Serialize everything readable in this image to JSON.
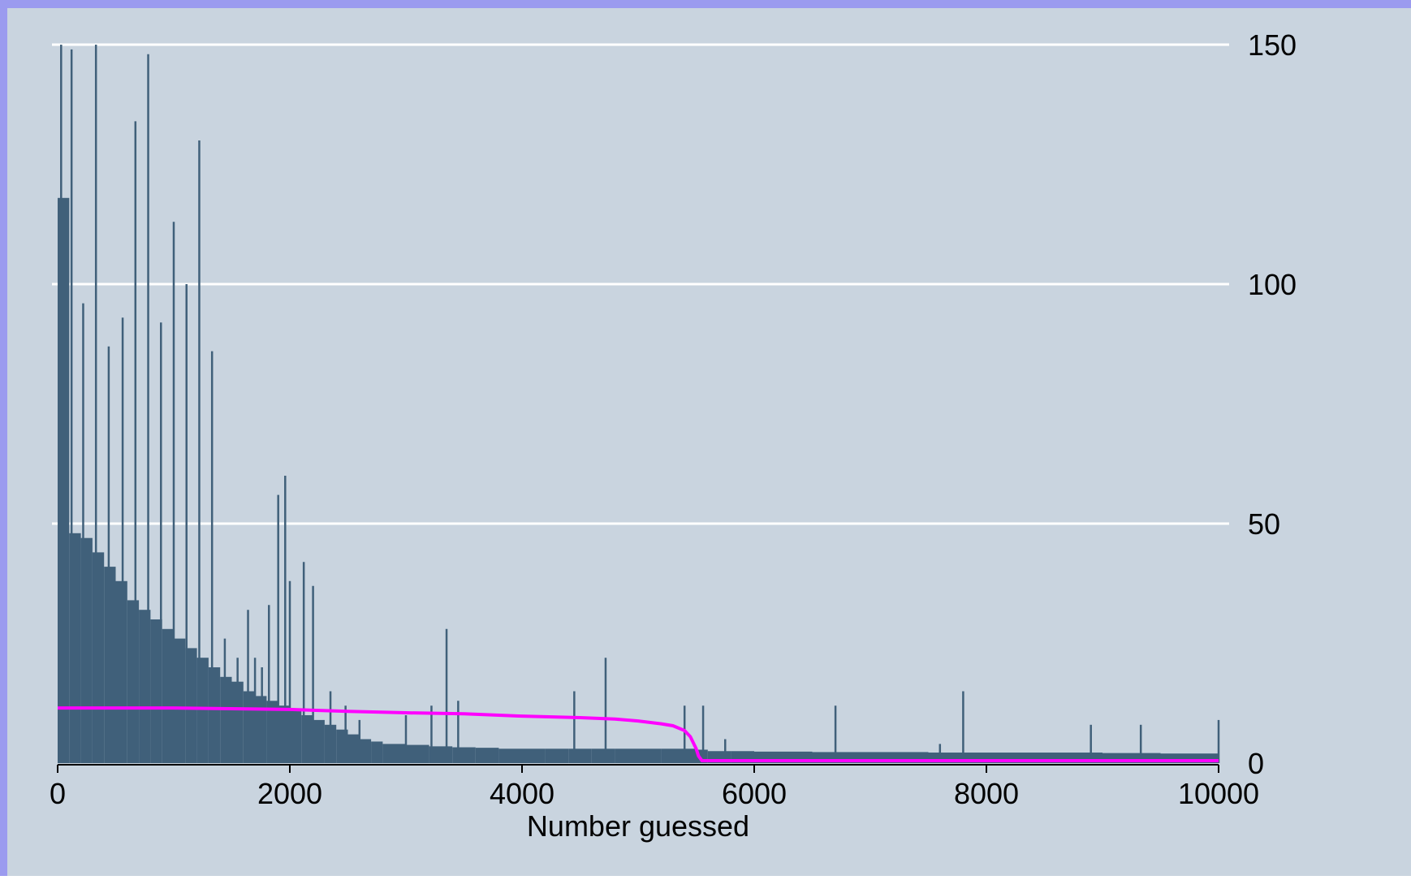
{
  "colors": {
    "slide_background": "#9b9bef",
    "plot_background": "#c9d4df",
    "bars": "#40607a",
    "grid": "#ffffff",
    "line": "#ff00ff",
    "text": "#000000"
  },
  "chart_data": {
    "type": "bar",
    "title": "",
    "xlabel": "Number guessed",
    "ylabel": "",
    "xlim": [
      0,
      10000
    ],
    "ylim": [
      0,
      150
    ],
    "x_ticks": [
      {
        "value": 0,
        "label": "0"
      },
      {
        "value": 2000,
        "label": "2000"
      },
      {
        "value": 4000,
        "label": "4000"
      },
      {
        "value": 6000,
        "label": "6000"
      },
      {
        "value": 8000,
        "label": "8000"
      },
      {
        "value": 10000,
        "label": "10000"
      }
    ],
    "y_ticks": [
      {
        "value": 0,
        "label": "0"
      },
      {
        "value": 50,
        "label": "50"
      },
      {
        "value": 100,
        "label": "100"
      },
      {
        "value": 150,
        "label": "150"
      }
    ],
    "y_axis_side": "right",
    "grid": true,
    "legend": "none",
    "series": [
      {
        "type": "spikes",
        "color": "#40607a",
        "x": [
          30,
          120,
          220,
          330,
          440,
          560,
          670,
          780,
          890,
          1000,
          1110,
          1220,
          1330,
          1440,
          1550,
          1640,
          1700,
          1760,
          1820,
          1900,
          1960,
          2000,
          2120,
          2200,
          2350,
          2480,
          2600,
          3000,
          3220,
          3350,
          3450,
          4450,
          4720,
          5400,
          5560,
          5750,
          6700,
          7600,
          7800,
          8900,
          9330,
          10000
        ],
        "values": [
          150,
          149,
          96,
          150,
          87,
          93,
          134,
          148,
          92,
          113,
          100,
          130,
          86,
          26,
          22,
          32,
          22,
          20,
          33,
          56,
          60,
          38,
          42,
          37,
          15,
          12,
          9,
          10,
          12,
          28,
          13,
          15,
          22,
          12,
          12,
          5,
          12,
          4,
          15,
          8,
          8,
          9
        ]
      },
      {
        "type": "histogram",
        "color": "#40607a",
        "x": [
          0,
          100,
          200,
          300,
          400,
          500,
          600,
          700,
          800,
          900,
          1000,
          1100,
          1200,
          1300,
          1400,
          1500,
          1600,
          1700,
          1800,
          1900,
          2000,
          2100,
          2200,
          2300,
          2400,
          2500,
          2600,
          2700,
          2800,
          3000,
          3200,
          3400,
          3600,
          3800,
          4000,
          4200,
          4400,
          4600,
          4800,
          5000,
          5200,
          5400,
          5500,
          5600,
          5800,
          6000,
          6500,
          7000,
          7500,
          8000,
          8500,
          9000,
          9500,
          10000
        ],
        "values": [
          118,
          48,
          47,
          44,
          41,
          38,
          34,
          32,
          30,
          28,
          26,
          24,
          22,
          20,
          18,
          17,
          15,
          14,
          13,
          12,
          11,
          10,
          9,
          8,
          7,
          6,
          5,
          4.5,
          4,
          3.8,
          3.5,
          3.3,
          3.2,
          3,
          3,
          3,
          3,
          3,
          3,
          3,
          3,
          3,
          2.8,
          2.5,
          2.5,
          2.4,
          2.3,
          2.3,
          2.2,
          2.2,
          2.2,
          2.1,
          2,
          2
        ]
      },
      {
        "type": "line",
        "color": "#ff00ff",
        "x": [
          0,
          1000,
          2000,
          2500,
          3000,
          3500,
          4000,
          4500,
          4800,
          5000,
          5200,
          5300,
          5400,
          5450,
          5500,
          5520,
          5550,
          5600,
          10000
        ],
        "values": [
          11.5,
          11.5,
          11.2,
          10.8,
          10.5,
          10.3,
          9.8,
          9.5,
          9.2,
          8.8,
          8.2,
          7.8,
          6.8,
          5.5,
          3,
          1.5,
          0.5,
          0.5,
          0.5
        ]
      }
    ]
  }
}
